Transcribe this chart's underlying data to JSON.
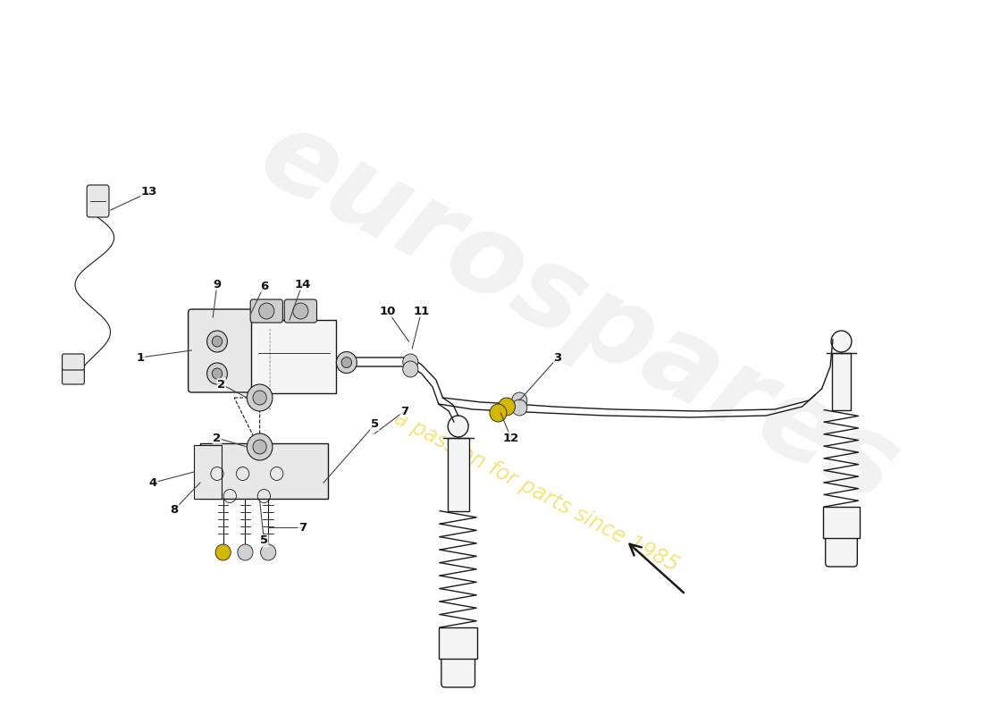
{
  "bg_color": "#ffffff",
  "watermark_text1": "eurospares",
  "watermark_text2": "a passion for parts since 1985",
  "figsize": [
    11.0,
    8.0
  ],
  "dpi": 100,
  "line_color": "#1a1a1a",
  "fill_light": "#f5f5f5",
  "fill_mid": "#e8e8e8",
  "fill_dark": "#d0d0d0",
  "yellow_fill": "#d4b800"
}
